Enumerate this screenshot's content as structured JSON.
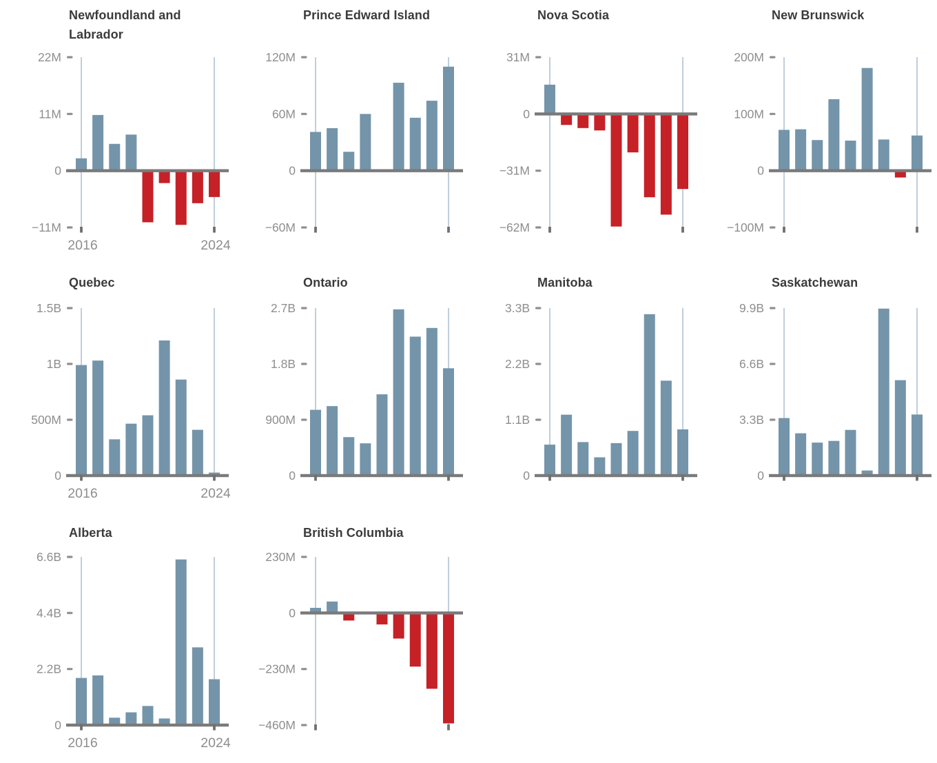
{
  "figure": {
    "kind": "small-multiples-bar-grid",
    "columns": 4,
    "provinces_shown": 10
  },
  "style": {
    "positive_color": "#7494aa",
    "negative_color": "#c52127",
    "gridline_color": "#bac9d5",
    "baseline_color": "#7a7a7a",
    "axis_dash_color": "#8f8f8f",
    "bottom_tick_color": "#6f6f6f",
    "label_color": "#8e8e8e",
    "title_color": "#3b3b3b",
    "background_color": "#ffffff"
  },
  "chart_data": [
    {
      "type": "bar",
      "title": "Newfoundland and Labrador",
      "years": [
        2016,
        2017,
        2018,
        2019,
        2020,
        2021,
        2022,
        2023,
        2024
      ],
      "values": [
        2400000,
        10800000,
        5200000,
        7000000,
        -10000000,
        -2400000,
        -10500000,
        -6300000,
        -5100000
      ],
      "axis": {
        "min": -11000000,
        "max": 22000000,
        "ticks": [
          {
            "label": "22M",
            "value": 22000000
          },
          {
            "label": "11M",
            "value": 11000000
          },
          {
            "label": "0",
            "value": 0
          },
          {
            "label": "−11M",
            "value": -11000000
          }
        ]
      },
      "x_labels": [
        "2016",
        "2024"
      ],
      "show_x_labels": true
    },
    {
      "type": "bar",
      "title": "Prince Edward Island",
      "years": [
        2016,
        2017,
        2018,
        2019,
        2020,
        2021,
        2022,
        2023,
        2024
      ],
      "values": [
        41000000,
        45000000,
        20000000,
        60000000,
        0,
        93000000,
        56000000,
        74000000,
        110000000
      ],
      "axis": {
        "min": -60000000,
        "max": 120000000,
        "ticks": [
          {
            "label": "120M",
            "value": 120000000
          },
          {
            "label": "60M",
            "value": 60000000
          },
          {
            "label": "0",
            "value": 0
          },
          {
            "label": "−60M",
            "value": -60000000
          }
        ]
      },
      "x_labels": [
        "2016",
        "2024"
      ],
      "show_x_labels": false
    },
    {
      "type": "bar",
      "title": "Nova Scotia",
      "years": [
        2016,
        2017,
        2018,
        2019,
        2020,
        2021,
        2022,
        2023,
        2024
      ],
      "values": [
        16000000,
        -6000000,
        -7700000,
        -9000000,
        -61500000,
        -21000000,
        -45500000,
        -55000000,
        -41000000
      ],
      "axis": {
        "min": -62000000,
        "max": 31000000,
        "ticks": [
          {
            "label": "31M",
            "value": 31000000
          },
          {
            "label": "0",
            "value": 0
          },
          {
            "label": "−31M",
            "value": -31000000
          },
          {
            "label": "−62M",
            "value": -62000000
          }
        ]
      },
      "x_labels": [
        "2016",
        "2024"
      ],
      "show_x_labels": false
    },
    {
      "type": "bar",
      "title": "New Brunswick",
      "years": [
        2016,
        2017,
        2018,
        2019,
        2020,
        2021,
        2022,
        2023,
        2024
      ],
      "values": [
        72000000,
        73000000,
        54000000,
        126000000,
        53000000,
        181000000,
        55000000,
        -12000000,
        62000000
      ],
      "axis": {
        "min": -100000000,
        "max": 200000000,
        "ticks": [
          {
            "label": "200M",
            "value": 200000000
          },
          {
            "label": "100M",
            "value": 100000000
          },
          {
            "label": "0",
            "value": 0
          },
          {
            "label": "−100M",
            "value": -100000000
          }
        ]
      },
      "x_labels": [
        "2016",
        "2024"
      ],
      "show_x_labels": false
    },
    {
      "type": "bar",
      "title": "Quebec",
      "years": [
        2016,
        2017,
        2018,
        2019,
        2020,
        2021,
        2022,
        2023,
        2024
      ],
      "values": [
        990000000,
        1030000000,
        325000000,
        465000000,
        540000000,
        1210000000,
        860000000,
        410000000,
        27000000
      ],
      "axis": {
        "min": 0,
        "max": 1500000000,
        "ticks": [
          {
            "label": "1.5B",
            "value": 1500000000
          },
          {
            "label": "1B",
            "value": 1000000000
          },
          {
            "label": "500M",
            "value": 500000000
          },
          {
            "label": "0",
            "value": 0
          }
        ]
      },
      "x_labels": [
        "2016",
        "2024"
      ],
      "show_x_labels": true
    },
    {
      "type": "bar",
      "title": "Ontario",
      "years": [
        2016,
        2017,
        2018,
        2019,
        2020,
        2021,
        2022,
        2023,
        2024
      ],
      "values": [
        1060000000,
        1120000000,
        620000000,
        520000000,
        1310000000,
        2680000000,
        2240000000,
        2380000000,
        1730000000
      ],
      "axis": {
        "min": 0,
        "max": 2700000000,
        "ticks": [
          {
            "label": "2.7B",
            "value": 2700000000
          },
          {
            "label": "1.8B",
            "value": 1800000000
          },
          {
            "label": "900M",
            "value": 900000000
          },
          {
            "label": "0",
            "value": 0
          }
        ]
      },
      "x_labels": [
        "2016",
        "2024"
      ],
      "show_x_labels": false
    },
    {
      "type": "bar",
      "title": "Manitoba",
      "years": [
        2016,
        2017,
        2018,
        2019,
        2020,
        2021,
        2022,
        2023,
        2024
      ],
      "values": [
        610000000,
        1200000000,
        660000000,
        360000000,
        640000000,
        880000000,
        3180000000,
        1870000000,
        910000000
      ],
      "axis": {
        "min": 0,
        "max": 3300000000,
        "ticks": [
          {
            "label": "3.3B",
            "value": 3300000000
          },
          {
            "label": "2.2B",
            "value": 2200000000
          },
          {
            "label": "1.1B",
            "value": 1100000000
          },
          {
            "label": "0",
            "value": 0
          }
        ]
      },
      "x_labels": [
        "2016",
        "2024"
      ],
      "show_x_labels": false
    },
    {
      "type": "bar",
      "title": "Saskatchewan",
      "years": [
        2016,
        2017,
        2018,
        2019,
        2020,
        2021,
        2022,
        2023,
        2024
      ],
      "values": [
        3400000000,
        2500000000,
        1950000000,
        2050000000,
        2700000000,
        300000000,
        9870000000,
        5640000000,
        3610000000
      ],
      "axis": {
        "min": 0,
        "max": 9900000000,
        "ticks": [
          {
            "label": "9.9B",
            "value": 9900000000
          },
          {
            "label": "6.6B",
            "value": 6600000000
          },
          {
            "label": "3.3B",
            "value": 3300000000
          },
          {
            "label": "0",
            "value": 0
          }
        ]
      },
      "x_labels": [
        "2016",
        "2024"
      ],
      "show_x_labels": false
    },
    {
      "type": "bar",
      "title": "Alberta",
      "years": [
        2016,
        2017,
        2018,
        2019,
        2020,
        2021,
        2022,
        2023,
        2024
      ],
      "values": [
        1850000000,
        1950000000,
        290000000,
        500000000,
        750000000,
        260000000,
        6500000000,
        3050000000,
        1800000000
      ],
      "axis": {
        "min": 0,
        "max": 6600000000,
        "ticks": [
          {
            "label": "6.6B",
            "value": 6600000000
          },
          {
            "label": "4.4B",
            "value": 4400000000
          },
          {
            "label": "2.2B",
            "value": 2200000000
          },
          {
            "label": "0",
            "value": 0
          }
        ]
      },
      "x_labels": [
        "2016",
        "2024"
      ],
      "show_x_labels": true
    },
    {
      "type": "bar",
      "title": "British Columbia",
      "years": [
        2016,
        2017,
        2018,
        2019,
        2020,
        2021,
        2022,
        2023,
        2024
      ],
      "values": [
        21000000,
        47000000,
        -31000000,
        0,
        -47000000,
        -105000000,
        -220000000,
        -311000000,
        -453000000
      ],
      "axis": {
        "min": -460000000,
        "max": 230000000,
        "ticks": [
          {
            "label": "230M",
            "value": 230000000
          },
          {
            "label": "0",
            "value": 0
          },
          {
            "label": "−230M",
            "value": -230000000
          },
          {
            "label": "−460M",
            "value": -460000000
          }
        ]
      },
      "x_labels": [
        "2016",
        "2024"
      ],
      "show_x_labels": false
    }
  ]
}
